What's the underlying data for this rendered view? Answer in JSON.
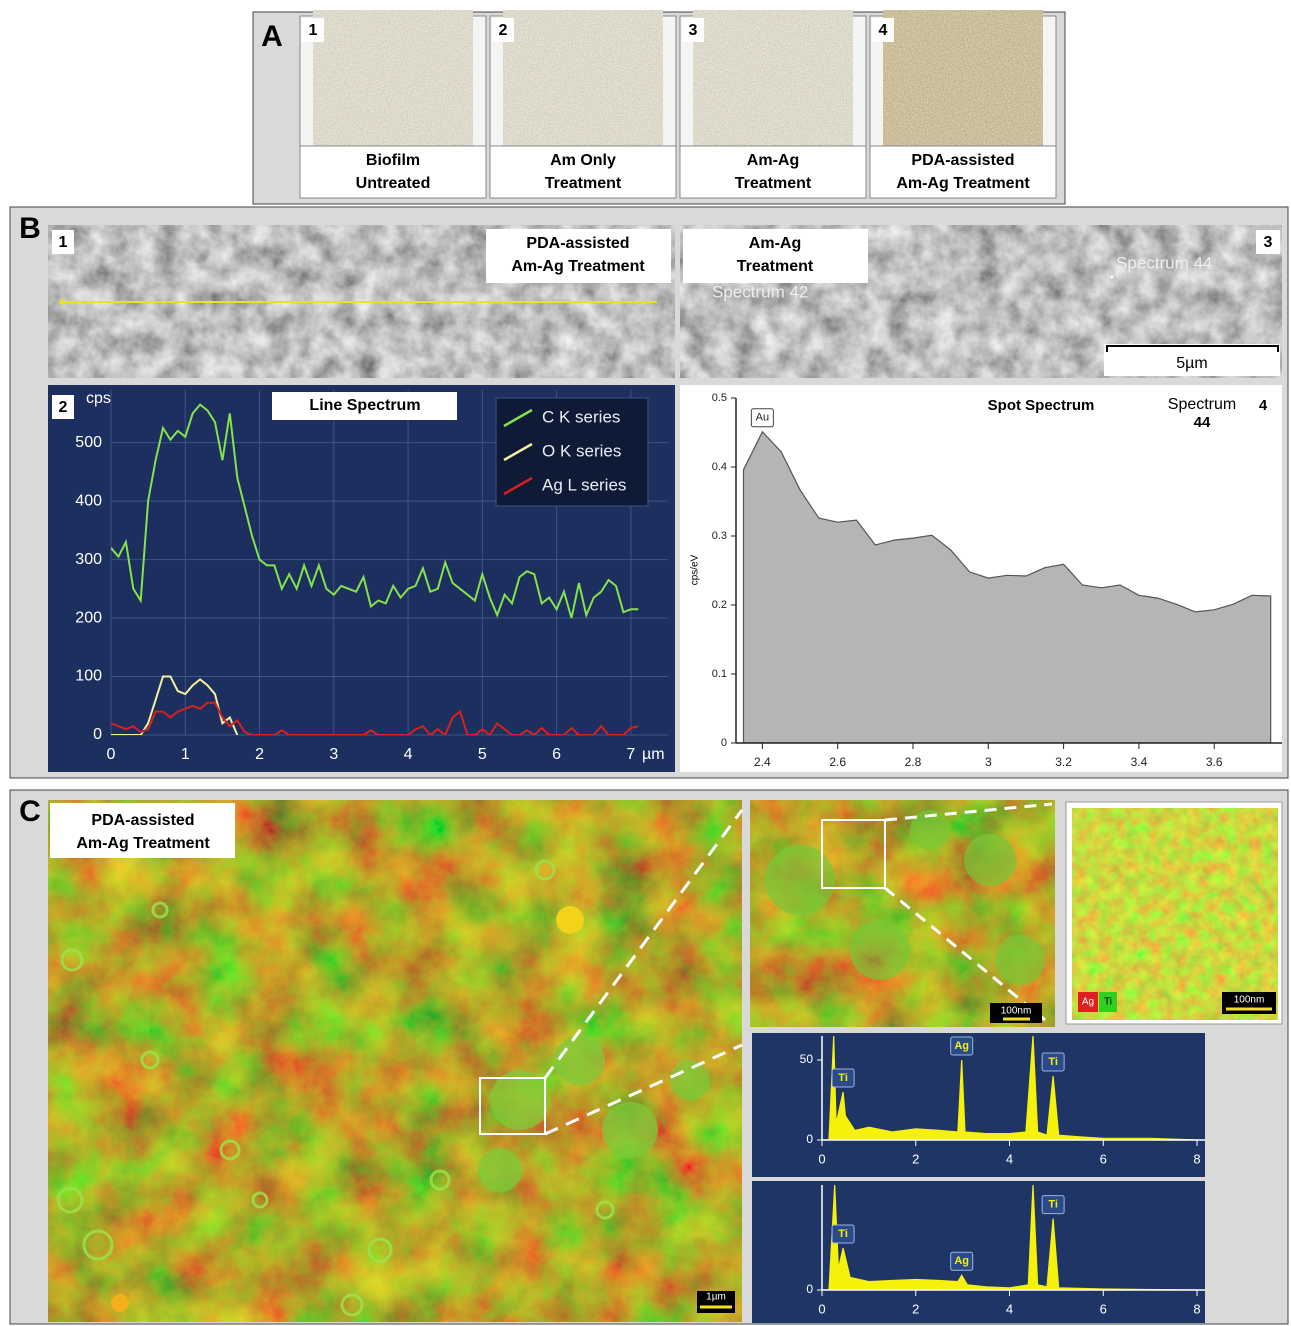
{
  "figure": {
    "A": {
      "label": "A",
      "items": [
        {
          "number": "1",
          "caption": [
            "Biofilm",
            "Untreated"
          ]
        },
        {
          "number": "2",
          "caption": [
            "Am Only",
            "Treatment"
          ]
        },
        {
          "number": "3",
          "caption": [
            "Am-Ag",
            "Treatment"
          ]
        },
        {
          "number": "4",
          "caption": [
            "PDA-assisted",
            "Am-Ag Treatment"
          ]
        }
      ]
    },
    "B": {
      "label": "B",
      "image1": {
        "number": "1",
        "caption": [
          "PDA-assisted",
          "Am-Ag Treatment"
        ]
      },
      "image3": {
        "number": "3",
        "caption": [
          "Am-Ag",
          "Treatment"
        ],
        "spots": [
          "Spectrum 42",
          "Spectrum 44"
        ],
        "scale_bar": "5µm"
      }
    },
    "C": {
      "label": "C",
      "caption": [
        "PDA-assisted",
        "Am-Ag Treatment"
      ],
      "scale_bars": [
        "1µm",
        "100nm",
        "100nm"
      ],
      "map_legend": [
        "Ag",
        "Ti"
      ]
    }
  },
  "chart_data": [
    {
      "type": "line",
      "panel_number": "2",
      "title": "Line Spectrum",
      "ylabel": "cps",
      "xlabel": "µm",
      "x": [
        0,
        0.1,
        0.2,
        0.3,
        0.4,
        0.5,
        0.6,
        0.7,
        0.8,
        0.9,
        1,
        1.1,
        1.2,
        1.3,
        1.4,
        1.5,
        1.6,
        1.7,
        1.8,
        1.9,
        2,
        2.1,
        2.2,
        2.3,
        2.4,
        2.5,
        2.6,
        2.7,
        2.8,
        2.9,
        3,
        3.1,
        3.2,
        3.3,
        3.4,
        3.5,
        3.6,
        3.7,
        3.8,
        3.9,
        4,
        4.1,
        4.2,
        4.3,
        4.4,
        4.5,
        4.6,
        4.7,
        4.8,
        4.9,
        5,
        5.1,
        5.2,
        5.3,
        5.4,
        5.5,
        5.6,
        5.7,
        5.8,
        5.9,
        6,
        6.1,
        6.2,
        6.3,
        6.4,
        6.5,
        6.6,
        6.7,
        6.8,
        6.9,
        7,
        7.1
      ],
      "xlim": [
        0,
        7.5
      ],
      "xticks": [
        0,
        1,
        2,
        3,
        4,
        5,
        6,
        7
      ],
      "ylim": [
        0,
        590
      ],
      "yticks": [
        0,
        100,
        200,
        300,
        400,
        500
      ],
      "grid": true,
      "legend": "upper right",
      "series": [
        {
          "name": "C K series",
          "color": "#86e24c",
          "values": [
            320,
            305,
            330,
            250,
            230,
            400,
            470,
            525,
            505,
            520,
            510,
            550,
            565,
            555,
            535,
            470,
            550,
            440,
            390,
            340,
            300,
            290,
            290,
            250,
            275,
            250,
            290,
            255,
            290,
            250,
            240,
            255,
            250,
            245,
            270,
            220,
            230,
            225,
            255,
            235,
            250,
            255,
            285,
            245,
            250,
            295,
            260,
            250,
            240,
            230,
            275,
            235,
            205,
            240,
            225,
            270,
            280,
            275,
            225,
            235,
            215,
            245,
            200,
            260,
            205,
            235,
            245,
            265,
            255,
            210,
            215,
            215
          ]
        },
        {
          "name": "O K series",
          "color": "#f4f0a0",
          "values": [
            0,
            0,
            0,
            0,
            0,
            20,
            60,
            100,
            100,
            75,
            70,
            85,
            95,
            85,
            70,
            20,
            30,
            0,
            null,
            null,
            null,
            null,
            null,
            null,
            null,
            null,
            null,
            null,
            null,
            null,
            null,
            null,
            null,
            null,
            null,
            null,
            null,
            null,
            null,
            null,
            null,
            null,
            null,
            null,
            null,
            null,
            null,
            null,
            null,
            null,
            null,
            null,
            null,
            null,
            null,
            null,
            null,
            null,
            null,
            null,
            null,
            null,
            null,
            null,
            null,
            null,
            null,
            null,
            null,
            null,
            null,
            null
          ]
        },
        {
          "name": "Ag L series",
          "color": "#d8201e",
          "values": [
            20,
            15,
            10,
            15,
            5,
            10,
            40,
            40,
            30,
            40,
            45,
            50,
            45,
            55,
            55,
            30,
            15,
            25,
            5,
            0,
            0,
            0,
            0,
            8,
            0,
            0,
            0,
            0,
            0,
            0,
            0,
            0,
            0,
            0,
            0,
            8,
            0,
            0,
            0,
            0,
            0,
            10,
            15,
            0,
            10,
            0,
            30,
            40,
            0,
            0,
            10,
            0,
            20,
            10,
            0,
            0,
            8,
            0,
            12,
            0,
            0,
            0,
            12,
            0,
            0,
            0,
            15,
            0,
            0,
            0,
            12,
            15
          ]
        }
      ]
    },
    {
      "type": "area",
      "panel_number": "4",
      "title": "Spot Spectrum",
      "spectrum_label": [
        "Spectrum",
        "44"
      ],
      "ylabel": "cps/eV",
      "color": "#b5b5b5",
      "x": [
        2.35,
        2.4,
        2.45,
        2.5,
        2.55,
        2.6,
        2.65,
        2.7,
        2.75,
        2.8,
        2.85,
        2.9,
        2.95,
        3,
        3.05,
        3.1,
        3.15,
        3.2,
        3.25,
        3.3,
        3.35,
        3.4,
        3.45,
        3.5,
        3.55,
        3.6,
        3.65,
        3.7,
        3.75
      ],
      "values": [
        0.396,
        0.451,
        0.422,
        0.367,
        0.326,
        0.32,
        0.323,
        0.287,
        0.294,
        0.297,
        0.301,
        0.28,
        0.248,
        0.239,
        0.243,
        0.242,
        0.254,
        0.259,
        0.229,
        0.225,
        0.229,
        0.214,
        0.21,
        0.201,
        0.19,
        0.193,
        0.201,
        0.214,
        0.213
      ],
      "xlim": [
        2.33,
        3.78
      ],
      "xticks": [
        2.4,
        2.6,
        2.8,
        3,
        3.2,
        3.4,
        3.6
      ],
      "ylim": [
        0,
        0.5
      ],
      "yticks": [
        0,
        0.1,
        0.2,
        0.3,
        0.4,
        0.5
      ],
      "annotations": [
        {
          "text": "Au",
          "x": 2.4,
          "y": 0.451
        }
      ]
    },
    {
      "type": "area",
      "color": "#f5f10a",
      "x": [
        0,
        0.15,
        0.25,
        0.3,
        0.45,
        0.5,
        0.7,
        1,
        1.5,
        2,
        2.5,
        2.9,
        2.98,
        3.05,
        3.5,
        4,
        4.35,
        4.5,
        4.6,
        4.8,
        4.93,
        5.05,
        5.5,
        6,
        7,
        8
      ],
      "values": [
        0,
        0,
        65,
        10,
        30,
        15,
        6,
        8,
        5,
        7,
        6,
        5,
        50,
        5,
        4,
        4,
        5,
        65,
        5,
        3,
        40,
        3,
        2,
        1,
        1,
        0
      ],
      "xlim": [
        0,
        8.17
      ],
      "xticks": [
        0,
        2,
        4,
        6,
        8
      ],
      "ylim": [
        0,
        65
      ],
      "yticks": [
        0,
        50
      ],
      "annotations": [
        {
          "text": "Ti",
          "x": 0.45,
          "y": 30
        },
        {
          "text": "Ag",
          "x": 2.98,
          "y": 50
        },
        {
          "text": "Ti",
          "x": 4.93,
          "y": 40
        }
      ]
    },
    {
      "type": "area",
      "color": "#f5f10a",
      "x": [
        0,
        0.15,
        0.27,
        0.35,
        0.45,
        0.6,
        1,
        1.5,
        2,
        2.5,
        2.9,
        2.98,
        3.1,
        3.5,
        4,
        4.4,
        4.5,
        4.6,
        4.8,
        4.93,
        5.05,
        6,
        8
      ],
      "values": [
        0,
        0,
        100,
        20,
        40,
        12,
        8,
        9,
        10,
        9,
        8,
        14,
        5,
        3,
        2,
        5,
        100,
        5,
        3,
        68,
        2,
        1,
        0
      ],
      "xlim": [
        0,
        8.17
      ],
      "xticks": [
        0,
        2,
        4,
        6,
        8
      ],
      "ylim": [
        0,
        100
      ],
      "yticks": [
        0
      ],
      "annotations": [
        {
          "text": "Ti",
          "x": 0.45,
          "y": 40
        },
        {
          "text": "Ag",
          "x": 2.98,
          "y": 14
        },
        {
          "text": "Ti",
          "x": 4.93,
          "y": 68
        }
      ]
    }
  ]
}
